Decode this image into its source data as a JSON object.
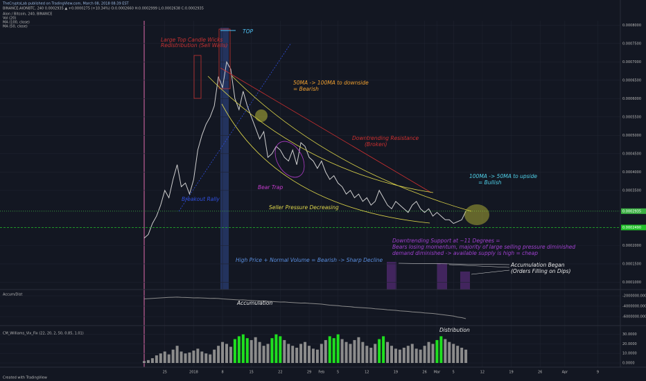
{
  "header": {
    "publisher": "TheCryptoLab published on TradingView.com, March 08, 2018 08:39 EST",
    "symbol_line": "BINANCE:AIONBTC, 240  0.0002935 ▲ +0.0000275 (+10.34%) O:0.0002660 H:0.0002999 L:0.0002638 C:0.0002935"
  },
  "footer": "Created with TradingView",
  "annotations": [
    [
      "TOP"
    ],
    [
      "Large Top Candle Wicks",
      "Redistribution (Sell Walls)"
    ],
    [
      "50MA -> 100MA to downside",
      "= Bearish"
    ],
    [
      "Downtrending Resistance",
      "(Broken)"
    ],
    [
      "100MA -> 50MA to upside",
      "= Bullish"
    ],
    [
      "Bear Trap"
    ],
    [
      "Breakout Rally"
    ],
    [
      "Seller Pressure Decreasing"
    ],
    [
      "Downtrending Support at ~11 Degrees =",
      "Bears losing momentum, majority of large selling pressure diminished",
      "demand diminished -> available supply is high = cheap"
    ],
    [
      "High Price + Normal Volume = Bearish -> Sharp Decline"
    ],
    [
      "Accumulation Began",
      "(Orders Filling on Dips)"
    ],
    [
      "Accumulation"
    ],
    [
      "Distribution"
    ]
  ],
  "chart_data": {
    "type": "line",
    "categories": [
      null,
      null,
      null,
      null,
      null,
      "25",
      null,
      null,
      null,
      null,
      null,
      null,
      "2018",
      null,
      null,
      null,
      null,
      null,
      null,
      "8",
      null,
      null,
      null,
      null,
      null,
      null,
      "15",
      null,
      null,
      null,
      null,
      null,
      null,
      "22",
      null,
      null,
      null,
      null,
      null,
      null,
      "29",
      null,
      null,
      "Feb",
      null,
      null,
      null,
      "5",
      null,
      null,
      null,
      null,
      null,
      null,
      "12",
      null,
      null,
      null,
      null,
      null,
      null,
      "19",
      null,
      null,
      null,
      null,
      null,
      null,
      "26",
      null,
      null,
      "Mar",
      null,
      null,
      null,
      "5",
      null,
      null,
      null,
      null,
      null,
      null,
      "12",
      null,
      null,
      null,
      null,
      null,
      null,
      "19",
      null,
      null,
      null,
      null,
      null,
      null,
      "26",
      null,
      null,
      null,
      null,
      null,
      "Apr",
      null,
      null,
      null,
      null,
      null,
      null,
      null,
      "9",
      null,
      null,
      null
    ],
    "series": [
      {
        "name": "Aion / Bitcoin, 240, BINANCE",
        "color": "#d0d0d0",
        "values": [
          0.00022,
          0.00023,
          0.00026,
          0.00028,
          0.00031,
          0.00035,
          0.00033,
          0.00038,
          0.00042,
          0.00036,
          0.00037,
          0.00034,
          0.00038,
          0.00046,
          0.0005,
          0.00053,
          0.00055,
          0.00058,
          0.00066,
          0.00063,
          0.0007,
          0.00068,
          0.0006,
          0.00057,
          0.00062,
          0.00058,
          0.00055,
          0.00052,
          0.00049,
          0.00051,
          0.00044,
          0.00045,
          0.00047,
          0.00046,
          0.00044,
          0.00043,
          0.00046,
          0.00042,
          0.00048,
          0.00047,
          0.00044,
          0.00043,
          0.00041,
          0.00043,
          0.0004,
          0.00038,
          0.00039,
          0.00037,
          0.00036,
          0.00034,
          0.00035,
          0.00033,
          0.00034,
          0.00032,
          0.00033,
          0.00031,
          0.00032,
          0.00035,
          0.00033,
          0.00031,
          0.0003,
          0.00032,
          0.00031,
          0.0003,
          0.00029,
          0.00031,
          0.00032,
          0.0003,
          0.00029,
          0.0003,
          0.00028,
          0.00029,
          0.00028,
          0.00027,
          0.00027,
          0.00026,
          0.000265,
          0.00027,
          0.0002935,
          null,
          null,
          null,
          null,
          null,
          null,
          null,
          null,
          null,
          null,
          null,
          null,
          null,
          null,
          null,
          null,
          null,
          null,
          null,
          null,
          null,
          null,
          null,
          null,
          null,
          null,
          null,
          null,
          null,
          null,
          null,
          null,
          null,
          null,
          null
        ]
      }
    ],
    "indicators": [
      "Vol (20)",
      "MA (100, close)",
      "MA (50, close)"
    ],
    "ylim": [
      8e-05,
      0.00081
    ],
    "yticks": [
      {
        "value": 0.0008,
        "label": "0.0008000"
      },
      {
        "value": 0.00075,
        "label": "0.0007500"
      },
      {
        "value": 0.0007,
        "label": "0.0007000"
      },
      {
        "value": 0.00065,
        "label": "0.0006500"
      },
      {
        "value": 0.0006,
        "label": "0.0006000"
      },
      {
        "value": 0.00055,
        "label": "0.0005500"
      },
      {
        "value": 0.0005,
        "label": "0.0005000"
      },
      {
        "value": 0.00045,
        "label": "0.0004500"
      },
      {
        "value": 0.0004,
        "label": "0.0004000"
      },
      {
        "value": 0.00035,
        "label": "0.0003500"
      },
      {
        "value": 0.0002,
        "label": "0.0002000"
      },
      {
        "value": 0.00015,
        "label": "0.0001500"
      },
      {
        "value": 0.0001,
        "label": "0.0001000"
      }
    ],
    "last_price": {
      "value": 0.0002935,
      "label": "0.0002935",
      "color": "#3cb043"
    },
    "support_level": {
      "value": 0.000249,
      "label": "0.0002490",
      "color": "#22c02a"
    },
    "grid": true,
    "panels": [
      {
        "type": "line",
        "title": "Accum/Dist",
        "series": [
          {
            "color": "#8a8a8a",
            "values": [
              -2600000,
              -2550000,
              -2500000,
              -2450000,
              -2400000,
              -2350000,
              -2300000,
              -2280000,
              -2250000,
              -2300000,
              -2320000,
              -2350000,
              -2400000,
              -2380000,
              -2420000,
              -2450000,
              -2500000,
              -2480000,
              -2520000,
              -2600000,
              -2650000,
              -2700000,
              -2750000,
              -2800000,
              -2780000,
              -2850000,
              -2900000,
              -2950000,
              -3000000,
              -2980000,
              -3050000,
              -3100000,
              -3150000,
              -3200000,
              -3180000,
              -3250000,
              -3300000,
              -3350000,
              -3400000,
              -3380000,
              -3450000,
              -3500000,
              -3550000,
              -3600000,
              -3700000,
              -3800000,
              -3850000,
              -3900000,
              -4000000,
              -4050000,
              -4100000,
              -4200000,
              -4250000,
              -4300000,
              -4350000,
              -4400000,
              -4500000,
              -4550000,
              -4600000,
              -4700000,
              -4750000,
              -4800000,
              -4900000,
              -4950000,
              -5000000,
              -5100000,
              -5150000,
              -5200000,
              -5300000,
              -5350000,
              -5400000,
              -5500000,
              -5600000,
              -5700000,
              -5800000,
              -5900000,
              -6100000,
              -6200000,
              -6400000,
              null,
              null,
              null,
              null,
              null,
              null,
              null,
              null,
              null,
              null,
              null,
              null,
              null,
              null,
              null,
              null,
              null,
              null,
              null,
              null,
              null,
              null,
              null,
              null,
              null,
              null,
              null,
              null,
              null,
              null,
              null,
              null,
              null,
              null,
              null
            ]
          }
        ],
        "ylim": [
          -7000000,
          -1000000
        ],
        "yticks": [
          {
            "value": -2000000,
            "label": "-2000000.0000"
          },
          {
            "value": -4000000,
            "label": "-4000000.0000"
          },
          {
            "value": -6000000,
            "label": "-6000000.0000"
          }
        ]
      },
      {
        "type": "bar",
        "title": "CM_Williams_Vix_Fix (22, 20, 2, 50, 0.85, 1.01)",
        "series": [
          {
            "color": "#8c8c8c",
            "values": [
              2,
              3,
              5,
              8,
              10,
              12,
              9,
              14,
              18,
              12,
              10,
              11,
              13,
              15,
              12,
              10,
              9,
              14,
              18,
              22,
              20,
              17,
              null,
              null,
              null,
              null,
              24,
              27,
              22,
              18,
              20,
              null,
              null,
              null,
              24,
              20,
              18,
              16,
              20,
              22,
              18,
              15,
              14,
              20,
              24,
              null,
              null,
              null,
              25,
              22,
              20,
              24,
              27,
              22,
              18,
              16,
              20,
              null,
              null,
              22,
              18,
              15,
              14,
              16,
              18,
              20,
              15,
              14,
              18,
              22,
              20,
              null,
              null,
              25,
              22,
              20,
              18,
              16,
              14,
              null,
              null,
              null,
              null,
              null,
              null,
              null,
              null,
              null,
              null,
              null,
              null,
              null,
              null,
              null,
              null,
              null,
              null,
              null,
              null,
              null,
              null,
              null,
              null,
              null,
              null,
              null,
              null,
              null,
              null,
              null,
              null,
              null,
              null,
              null
            ]
          },
          {
            "color": "#1fe01f",
            "values": [
              null,
              null,
              null,
              null,
              null,
              null,
              null,
              null,
              null,
              null,
              null,
              null,
              null,
              null,
              null,
              null,
              null,
              null,
              null,
              null,
              null,
              null,
              25,
              28,
              30,
              26,
              null,
              null,
              null,
              null,
              null,
              26,
              30,
              28,
              null,
              null,
              null,
              null,
              null,
              null,
              null,
              null,
              null,
              null,
              null,
              28,
              26,
              30,
              null,
              null,
              null,
              null,
              null,
              null,
              null,
              null,
              null,
              25,
              28,
              null,
              null,
              null,
              null,
              null,
              null,
              null,
              null,
              null,
              null,
              null,
              null,
              24,
              28,
              null,
              null,
              null,
              null,
              null,
              null,
              null,
              null,
              null,
              null,
              null,
              null,
              null,
              null,
              null,
              null,
              null,
              null,
              null,
              null,
              null,
              null,
              null,
              null,
              null,
              null,
              null,
              null,
              null,
              null,
              null,
              null,
              null,
              null,
              null,
              null,
              null,
              null,
              null,
              null,
              null
            ]
          }
        ],
        "ylim": [
          0,
          37
        ],
        "yticks": [
          {
            "value": 30,
            "label": "30.0000"
          },
          {
            "value": 20,
            "label": "20.0000"
          },
          {
            "value": 10,
            "label": "10.0000"
          },
          {
            "value": 0,
            "label": "0.0000"
          }
        ]
      }
    ]
  }
}
